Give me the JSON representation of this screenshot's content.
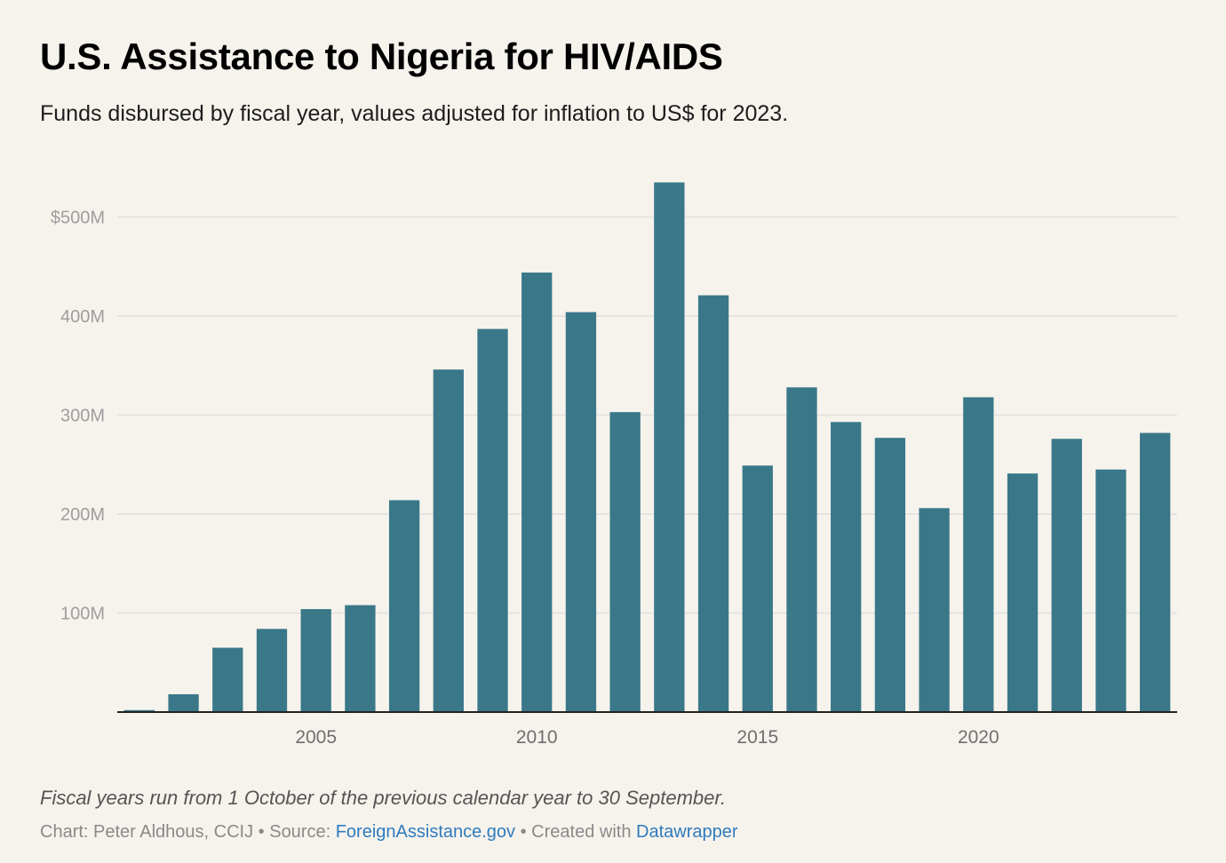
{
  "header": {
    "title": "U.S. Assistance to Nigeria for HIV/AIDS",
    "subtitle": "Funds disbursed by fiscal year, values adjusted for inflation to US$ for 2023."
  },
  "chart_data": {
    "type": "bar",
    "title": "U.S. Assistance to Nigeria for HIV/AIDS",
    "subtitle": "Funds disbursed by fiscal year, values adjusted for inflation to US$ for 2023.",
    "xlabel": "",
    "ylabel": "",
    "units": "US$ millions (2023 dollars)",
    "categories": [
      "2001",
      "2002",
      "2003",
      "2004",
      "2005",
      "2006",
      "2007",
      "2008",
      "2009",
      "2010",
      "2011",
      "2012",
      "2013",
      "2014",
      "2015",
      "2016",
      "2017",
      "2018",
      "2019",
      "2020",
      "2021",
      "2022",
      "2023",
      "2024"
    ],
    "values": [
      2,
      18,
      65,
      84,
      104,
      108,
      214,
      346,
      387,
      444,
      404,
      303,
      535,
      421,
      249,
      328,
      293,
      277,
      206,
      318,
      241,
      276,
      245,
      282
    ],
    "ylim": [
      0,
      550
    ],
    "yticks": [
      100,
      200,
      300,
      400,
      500
    ],
    "ytick_labels": [
      "100M",
      "200M",
      "300M",
      "400M",
      "$500M"
    ],
    "xticks": [
      "2005",
      "2010",
      "2015",
      "2020"
    ],
    "grid": true,
    "legend": "none",
    "bar_color": "#3a7889"
  },
  "footer": {
    "note": "Fiscal years run from 1 October of the previous calendar year to 30 September.",
    "credit_prefix": "Chart: Peter Aldhous, CCIJ • Source: ",
    "source_link": "ForeignAssistance.gov",
    "created_prefix": " • Created with ",
    "tool_link": "Datawrapper"
  },
  "colors": {
    "background": "#f6f3ed",
    "bar": "#3a7889",
    "link": "#2f7bbd"
  }
}
